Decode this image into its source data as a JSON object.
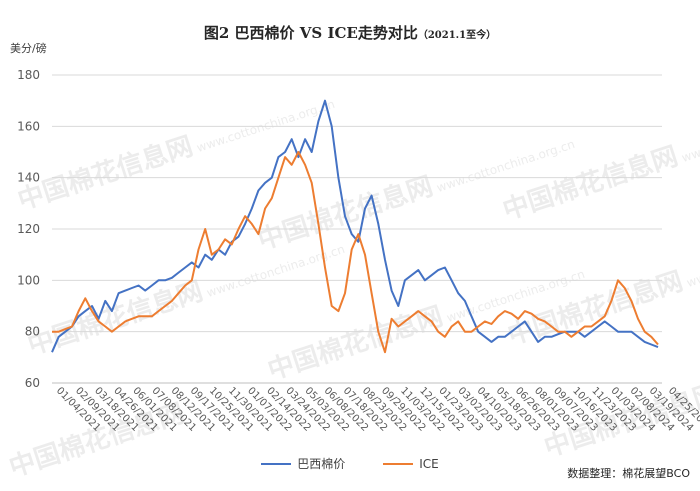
{
  "title": "图2 巴西棉价 VS ICE走势对比",
  "title_suffix": "（2021.1至今）",
  "unit_label": "美分/磅",
  "source": "数据整理：棉花展望BCO",
  "watermark": {
    "cn": "中国棉花信息网",
    "url": "www.cottonchina.org.cn"
  },
  "chart_data": {
    "type": "line",
    "ylim": [
      60,
      180
    ],
    "yticks": [
      60,
      80,
      100,
      120,
      140,
      160,
      180
    ],
    "x_tick_labels": [
      "01/04/2021",
      "02/09/2021",
      "03/18/2021",
      "04/26/2021",
      "06/01/2021",
      "07/08/2021",
      "08/12/2021",
      "09/17/2021",
      "10/25/2021",
      "11/30/2021",
      "01/07/2022",
      "02/14/2022",
      "03/24/2022",
      "05/03/2022",
      "06/08/2022",
      "07/18/2022",
      "08/23/2022",
      "09/29/2022",
      "11/03/2022",
      "12/15/2022",
      "01/23/2023",
      "03/02/2023",
      "04/10/2023",
      "05/18/2023",
      "06/26/2023",
      "08/01/2023",
      "09/07/2023",
      "10/16/2023",
      "11/23/2023",
      "01/03/2024",
      "02/08/2024",
      "03/19/2024",
      "04/25/2024"
    ],
    "grid": "horizontal",
    "legend_position": "bottom",
    "series": [
      {
        "name": "巴西棉价",
        "color": "#4472C4",
        "values": [
          72,
          78,
          80,
          82,
          86,
          88,
          90,
          85,
          92,
          88,
          95,
          96,
          97,
          98,
          96,
          98,
          100,
          100,
          101,
          103,
          105,
          107,
          105,
          110,
          108,
          112,
          110,
          115,
          117,
          122,
          128,
          135,
          138,
          140,
          148,
          150,
          155,
          148,
          155,
          150,
          162,
          170,
          160,
          140,
          125,
          118,
          115,
          128,
          133,
          122,
          108,
          96,
          90,
          100,
          102,
          104,
          100,
          102,
          104,
          105,
          100,
          95,
          92,
          86,
          80,
          78,
          76,
          78,
          78,
          80,
          82,
          84,
          80,
          76,
          78,
          78,
          79,
          80,
          80,
          80,
          78,
          80,
          82,
          84,
          82,
          80,
          80,
          80,
          78,
          76,
          75,
          74
        ]
      },
      {
        "name": "ICE",
        "color": "#ED7D31",
        "values": [
          80,
          80,
          81,
          82,
          88,
          93,
          88,
          84,
          82,
          80,
          82,
          84,
          85,
          86,
          86,
          86,
          88,
          90,
          92,
          95,
          98,
          100,
          112,
          120,
          110,
          112,
          116,
          114,
          120,
          125,
          122,
          118,
          128,
          132,
          140,
          148,
          145,
          150,
          145,
          138,
          122,
          105,
          90,
          88,
          95,
          112,
          118,
          110,
          95,
          80,
          72,
          85,
          82,
          84,
          86,
          88,
          86,
          84,
          80,
          78,
          82,
          84,
          80,
          80,
          82,
          84,
          83,
          86,
          88,
          87,
          85,
          88,
          87,
          85,
          84,
          82,
          80,
          80,
          78,
          80,
          82,
          82,
          84,
          86,
          92,
          100,
          97,
          92,
          85,
          80,
          78,
          75
        ]
      }
    ]
  }
}
